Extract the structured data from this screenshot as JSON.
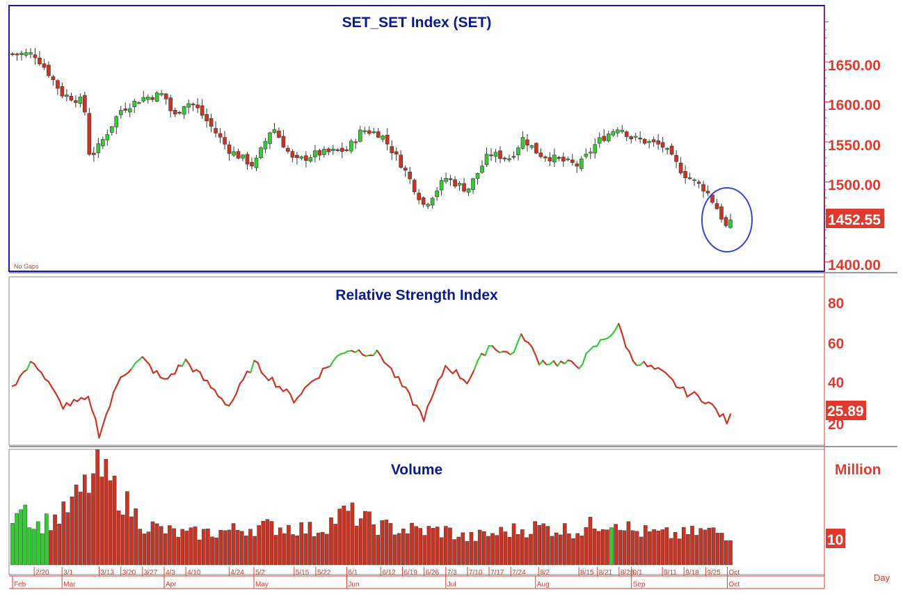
{
  "panels": {
    "price": {
      "title": "SET_SET  Index  (SET)",
      "note": "No Gaps",
      "yticks": [
        "1650.00",
        "1600.00",
        "1550.00",
        "1500.00",
        "1400.00"
      ],
      "last_value": "1452.55"
    },
    "rsi": {
      "title": "Relative  Strength  Index",
      "yticks": [
        "80",
        "60",
        "40",
        "20"
      ],
      "last_value": "25.89"
    },
    "volume": {
      "title": "Volume",
      "unit": "Million",
      "ytick": "10"
    }
  },
  "x_axis": {
    "unit": "Day",
    "date_labels": [
      "2/20",
      "3/1",
      "3/13",
      "3/20",
      "3/27",
      "4/3",
      "4/10",
      "4/24",
      "5/2",
      "5/15",
      "5/22",
      "6/1",
      "6/12",
      "6/19",
      "6/26",
      "7/3",
      "7/10",
      "7/17",
      "7/24",
      "8/2",
      "8/15",
      "8/21",
      "8/28",
      "9/1",
      "9/11",
      "9/18",
      "9/25",
      "Oct"
    ],
    "month_labels": [
      "Feb",
      "Mar",
      "Apr",
      "May",
      "Jun",
      "Jul",
      "Aug",
      "Sep",
      "Oct"
    ]
  },
  "colors": {
    "up": "#33cc33",
    "down": "#cc3322",
    "title": "#0a1a8c",
    "axis_text": "#e03a2e",
    "frame": "#1a1aa0",
    "highlight_circle": "#3344cc"
  },
  "chart_data": [
    {
      "type": "candlestick",
      "title": "SET_SET  Index  (SET)",
      "ylim": [
        1390,
        1710
      ],
      "close_anchors": [
        {
          "date": "2/13",
          "close": 1660
        },
        {
          "date": "2/20",
          "close": 1660
        },
        {
          "date": "2/24",
          "close": 1640
        },
        {
          "date": "3/1",
          "close": 1610
        },
        {
          "date": "3/8",
          "close": 1600
        },
        {
          "date": "3/10",
          "close": 1530
        },
        {
          "date": "3/13",
          "close": 1545
        },
        {
          "date": "3/20",
          "close": 1590
        },
        {
          "date": "3/27",
          "close": 1605
        },
        {
          "date": "4/3",
          "close": 1610
        },
        {
          "date": "4/6",
          "close": 1580
        },
        {
          "date": "4/10",
          "close": 1600
        },
        {
          "date": "4/13",
          "close": 1595
        },
        {
          "date": "4/24",
          "close": 1540
        },
        {
          "date": "5/2",
          "close": 1520
        },
        {
          "date": "5/8",
          "close": 1570
        },
        {
          "date": "5/15",
          "close": 1525
        },
        {
          "date": "5/22",
          "close": 1535
        },
        {
          "date": "6/1",
          "close": 1540
        },
        {
          "date": "6/6",
          "close": 1565
        },
        {
          "date": "6/12",
          "close": 1560
        },
        {
          "date": "6/19",
          "close": 1520
        },
        {
          "date": "6/26",
          "close": 1470
        },
        {
          "date": "7/3",
          "close": 1505
        },
        {
          "date": "7/10",
          "close": 1490
        },
        {
          "date": "7/17",
          "close": 1535
        },
        {
          "date": "7/24",
          "close": 1530
        },
        {
          "date": "7/28",
          "close": 1555
        },
        {
          "date": "8/2",
          "close": 1535
        },
        {
          "date": "8/15",
          "close": 1520
        },
        {
          "date": "8/21",
          "close": 1550
        },
        {
          "date": "8/28",
          "close": 1570
        },
        {
          "date": "9/1",
          "close": 1555
        },
        {
          "date": "9/11",
          "close": 1545
        },
        {
          "date": "9/18",
          "close": 1510
        },
        {
          "date": "9/25",
          "close": 1490
        },
        {
          "date": "9/29",
          "close": 1465
        },
        {
          "date": "10/2",
          "close": 1440
        },
        {
          "date": "10/3",
          "close": 1452.55
        }
      ]
    },
    {
      "type": "line",
      "title": "Relative  Strength  Index",
      "ylim": [
        12,
        92
      ],
      "anchors": [
        {
          "date": "2/13",
          "value": 40
        },
        {
          "date": "2/20",
          "value": 52
        },
        {
          "date": "3/1",
          "value": 30
        },
        {
          "date": "3/10",
          "value": 33
        },
        {
          "date": "3/13",
          "value": 16
        },
        {
          "date": "3/20",
          "value": 45
        },
        {
          "date": "3/27",
          "value": 53
        },
        {
          "date": "4/3",
          "value": 42
        },
        {
          "date": "4/10",
          "value": 52
        },
        {
          "date": "4/24",
          "value": 30
        },
        {
          "date": "5/2",
          "value": 51
        },
        {
          "date": "5/15",
          "value": 33
        },
        {
          "date": "5/22",
          "value": 44
        },
        {
          "date": "6/1",
          "value": 58
        },
        {
          "date": "6/12",
          "value": 55
        },
        {
          "date": "6/26",
          "value": 24
        },
        {
          "date": "7/3",
          "value": 50
        },
        {
          "date": "7/10",
          "value": 42
        },
        {
          "date": "7/17",
          "value": 60
        },
        {
          "date": "7/24",
          "value": 55
        },
        {
          "date": "7/28",
          "value": 65
        },
        {
          "date": "8/2",
          "value": 52
        },
        {
          "date": "8/15",
          "value": 50
        },
        {
          "date": "8/21",
          "value": 60
        },
        {
          "date": "8/28",
          "value": 69
        },
        {
          "date": "9/1",
          "value": 53
        },
        {
          "date": "9/11",
          "value": 46
        },
        {
          "date": "9/18",
          "value": 37
        },
        {
          "date": "9/25",
          "value": 33
        },
        {
          "date": "10/2",
          "value": 22
        },
        {
          "date": "10/3",
          "value": 25.89
        }
      ]
    },
    {
      "type": "bar",
      "title": "Volume",
      "ylabel": "Million",
      "ylim": [
        0,
        28
      ],
      "anchors": [
        {
          "date": "2/13",
          "value": 14
        },
        {
          "date": "2/16",
          "value": 18
        },
        {
          "date": "2/20",
          "value": 10
        },
        {
          "date": "3/1",
          "value": 13
        },
        {
          "date": "3/13",
          "value": 25
        },
        {
          "date": "3/20",
          "value": 18
        },
        {
          "date": "3/27",
          "value": 11
        },
        {
          "date": "4/3",
          "value": 9
        },
        {
          "date": "4/10",
          "value": 8
        },
        {
          "date": "4/24",
          "value": 9
        },
        {
          "date": "5/2",
          "value": 10
        },
        {
          "date": "5/15",
          "value": 10
        },
        {
          "date": "5/22",
          "value": 9
        },
        {
          "date": "6/1",
          "value": 14
        },
        {
          "date": "6/12",
          "value": 10
        },
        {
          "date": "6/26",
          "value": 9
        },
        {
          "date": "7/3",
          "value": 9
        },
        {
          "date": "7/10",
          "value": 7
        },
        {
          "date": "7/17",
          "value": 8
        },
        {
          "date": "7/24",
          "value": 9
        },
        {
          "date": "8/2",
          "value": 10
        },
        {
          "date": "8/15",
          "value": 9
        },
        {
          "date": "8/21",
          "value": 11
        },
        {
          "date": "8/28",
          "value": 12
        },
        {
          "date": "9/1",
          "value": 9
        },
        {
          "date": "9/11",
          "value": 8
        },
        {
          "date": "9/18",
          "value": 8
        },
        {
          "date": "9/25",
          "value": 9
        },
        {
          "date": "10/3",
          "value": 8
        }
      ]
    }
  ]
}
